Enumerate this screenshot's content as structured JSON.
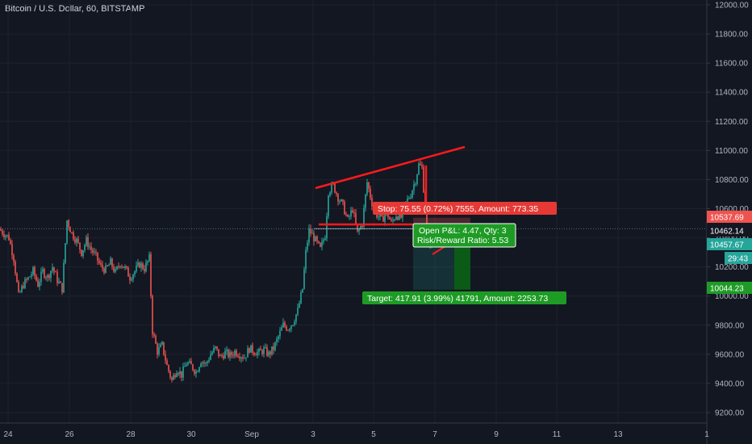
{
  "header": {
    "title": "Bitcoin / U.S. Dollar, 60, BITSTAMP"
  },
  "chart_data": {
    "type": "candlestick",
    "y_axis": {
      "range": [
        9150,
        12030
      ],
      "ticks": [
        "12000.00",
        "11800.00",
        "11600.00",
        "11400.00",
        "11200.00",
        "11000.00",
        "10800.00",
        "10600.00",
        "10400.00",
        "10200.00",
        "10000.00",
        "9800.00",
        "9600.00",
        "9400.00",
        "9200.00"
      ]
    },
    "x_axis": {
      "ticks": [
        "24",
        "26",
        "28",
        "30",
        "Sep",
        "3",
        "5",
        "7",
        "9",
        "11",
        "13",
        "1"
      ]
    },
    "price_tags": [
      {
        "value": "10537.69",
        "color": "#ef5350"
      },
      {
        "value": "10462.14",
        "color": "#ffffff"
      },
      {
        "value": "10457.67",
        "color": "#26a69a"
      },
      {
        "value": "29:43",
        "color": "#26a69a"
      },
      {
        "value": "10044.23",
        "color": "#1e9b25"
      }
    ],
    "position": {
      "entry": 10462.14,
      "stop": 10537.69,
      "target": 10044.23,
      "stop_label": "Stop: 75.55 (0.72%) 7555, Amount: 773.35",
      "pnl_label": "Open P&L: 4.47, Qty: 3",
      "rr_label": "Risk/Reward Ratio: 5.53",
      "target_label": "Target: 417.91 (3.99%) 41791, Amount: 2253.73"
    },
    "series": [
      {
        "x": 0,
        "close": 10460
      },
      {
        "x": 6,
        "close": 10430
      },
      {
        "x": 12,
        "close": 10400
      },
      {
        "x": 18,
        "close": 10260
      },
      {
        "x": 24,
        "close": 10000
      },
      {
        "x": 30,
        "close": 10080
      },
      {
        "x": 36,
        "close": 10120
      },
      {
        "x": 42,
        "close": 10170
      },
      {
        "x": 48,
        "close": 10080
      },
      {
        "x": 54,
        "close": 10170
      },
      {
        "x": 60,
        "close": 10130
      },
      {
        "x": 66,
        "close": 10200
      },
      {
        "x": 72,
        "close": 10110
      },
      {
        "x": 78,
        "close": 10050
      },
      {
        "x": 84,
        "close": 10520
      },
      {
        "x": 90,
        "close": 10430
      },
      {
        "x": 96,
        "close": 10380
      },
      {
        "x": 102,
        "close": 10300
      },
      {
        "x": 108,
        "close": 10380
      },
      {
        "x": 114,
        "close": 10320
      },
      {
        "x": 120,
        "close": 10270
      },
      {
        "x": 126,
        "close": 10200
      },
      {
        "x": 132,
        "close": 10180
      },
      {
        "x": 138,
        "close": 10230
      },
      {
        "x": 144,
        "close": 10160
      },
      {
        "x": 150,
        "close": 10230
      },
      {
        "x": 156,
        "close": 10190
      },
      {
        "x": 162,
        "close": 10130
      },
      {
        "x": 168,
        "close": 10170
      },
      {
        "x": 174,
        "close": 10220
      },
      {
        "x": 180,
        "close": 10190
      },
      {
        "x": 186,
        "close": 10260
      },
      {
        "x": 190,
        "close": 9760
      },
      {
        "x": 196,
        "close": 9620
      },
      {
        "x": 202,
        "close": 9660
      },
      {
        "x": 208,
        "close": 9520
      },
      {
        "x": 214,
        "close": 9420
      },
      {
        "x": 220,
        "close": 9500
      },
      {
        "x": 226,
        "close": 9460
      },
      {
        "x": 232,
        "close": 9540
      },
      {
        "x": 238,
        "close": 9520
      },
      {
        "x": 244,
        "close": 9480
      },
      {
        "x": 250,
        "close": 9560
      },
      {
        "x": 256,
        "close": 9530
      },
      {
        "x": 262,
        "close": 9600
      },
      {
        "x": 268,
        "close": 9640
      },
      {
        "x": 274,
        "close": 9580
      },
      {
        "x": 280,
        "close": 9610
      },
      {
        "x": 286,
        "close": 9590
      },
      {
        "x": 292,
        "close": 9620
      },
      {
        "x": 298,
        "close": 9600
      },
      {
        "x": 304,
        "close": 9580
      },
      {
        "x": 310,
        "close": 9640
      },
      {
        "x": 316,
        "close": 9620
      },
      {
        "x": 322,
        "close": 9610
      },
      {
        "x": 328,
        "close": 9630
      },
      {
        "x": 334,
        "close": 9600
      },
      {
        "x": 340,
        "close": 9640
      },
      {
        "x": 346,
        "close": 9720
      },
      {
        "x": 352,
        "close": 9800
      },
      {
        "x": 358,
        "close": 9780
      },
      {
        "x": 364,
        "close": 9820
      },
      {
        "x": 370,
        "close": 9900
      },
      {
        "x": 376,
        "close": 10050
      },
      {
        "x": 380,
        "close": 10300
      },
      {
        "x": 384,
        "close": 10450
      },
      {
        "x": 388,
        "close": 10420
      },
      {
        "x": 392,
        "close": 10380
      },
      {
        "x": 398,
        "close": 10320
      },
      {
        "x": 404,
        "close": 10420
      },
      {
        "x": 408,
        "close": 10720
      },
      {
        "x": 414,
        "close": 10760
      },
      {
        "x": 420,
        "close": 10680
      },
      {
        "x": 426,
        "close": 10620
      },
      {
        "x": 432,
        "close": 10520
      },
      {
        "x": 438,
        "close": 10600
      },
      {
        "x": 444,
        "close": 10430
      },
      {
        "x": 450,
        "close": 10500
      },
      {
        "x": 456,
        "close": 10780
      },
      {
        "x": 462,
        "close": 10640
      },
      {
        "x": 468,
        "close": 10560
      },
      {
        "x": 474,
        "close": 10520
      },
      {
        "x": 480,
        "close": 10580
      },
      {
        "x": 486,
        "close": 10500
      },
      {
        "x": 492,
        "close": 10560
      },
      {
        "x": 498,
        "close": 10540
      },
      {
        "x": 504,
        "close": 10640
      },
      {
        "x": 510,
        "close": 10700
      },
      {
        "x": 516,
        "close": 10800
      },
      {
        "x": 520,
        "close": 10900
      },
      {
        "x": 524,
        "close": 10880
      },
      {
        "x": 528,
        "close": 10600
      },
      {
        "x": 532,
        "close": 10350
      },
      {
        "x": 536,
        "close": 10400
      },
      {
        "x": 540,
        "close": 10440
      },
      {
        "x": 544,
        "close": 10458
      }
    ]
  }
}
